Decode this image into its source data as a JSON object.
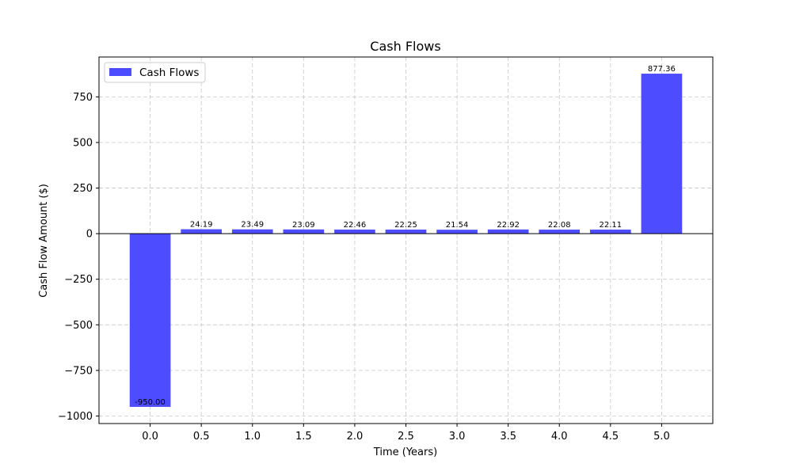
{
  "chart_data": {
    "type": "bar",
    "title": "Cash Flows",
    "xlabel": "Time (Years)",
    "ylabel": "Cash Flow Amount ($)",
    "x": [
      0.0,
      0.5,
      1.0,
      1.5,
      2.0,
      2.5,
      3.0,
      3.5,
      4.0,
      4.5,
      5.0
    ],
    "series": [
      {
        "name": "Cash Flows",
        "values": [
          -950.0,
          24.19,
          23.49,
          23.09,
          22.46,
          22.25,
          21.54,
          22.92,
          22.08,
          22.11,
          877.36
        ],
        "labels": [
          "-950.00",
          "24.19",
          "23.49",
          "23.09",
          "22.46",
          "22.25",
          "21.54",
          "22.92",
          "22.08",
          "22.11",
          "877.36"
        ]
      }
    ],
    "xticks": [
      0.0,
      0.5,
      1.0,
      1.5,
      2.0,
      2.5,
      3.0,
      3.5,
      4.0,
      4.5,
      5.0
    ],
    "xtick_labels": [
      "0.0",
      "0.5",
      "1.0",
      "1.5",
      "2.0",
      "2.5",
      "3.0",
      "3.5",
      "4.0",
      "4.5",
      "5.0"
    ],
    "yticks": [
      -1000,
      -750,
      -500,
      -250,
      0,
      250,
      500,
      750
    ],
    "ytick_labels": [
      "−1000",
      "−750",
      "−500",
      "−250",
      "0",
      "250",
      "500",
      "750"
    ],
    "xlim": [
      -0.5,
      5.5
    ],
    "ylim": [
      -1041.4,
      968.8
    ],
    "grid": true,
    "legend_position": "top-left",
    "bar_color": "#4d4dff",
    "zero_line": true
  }
}
